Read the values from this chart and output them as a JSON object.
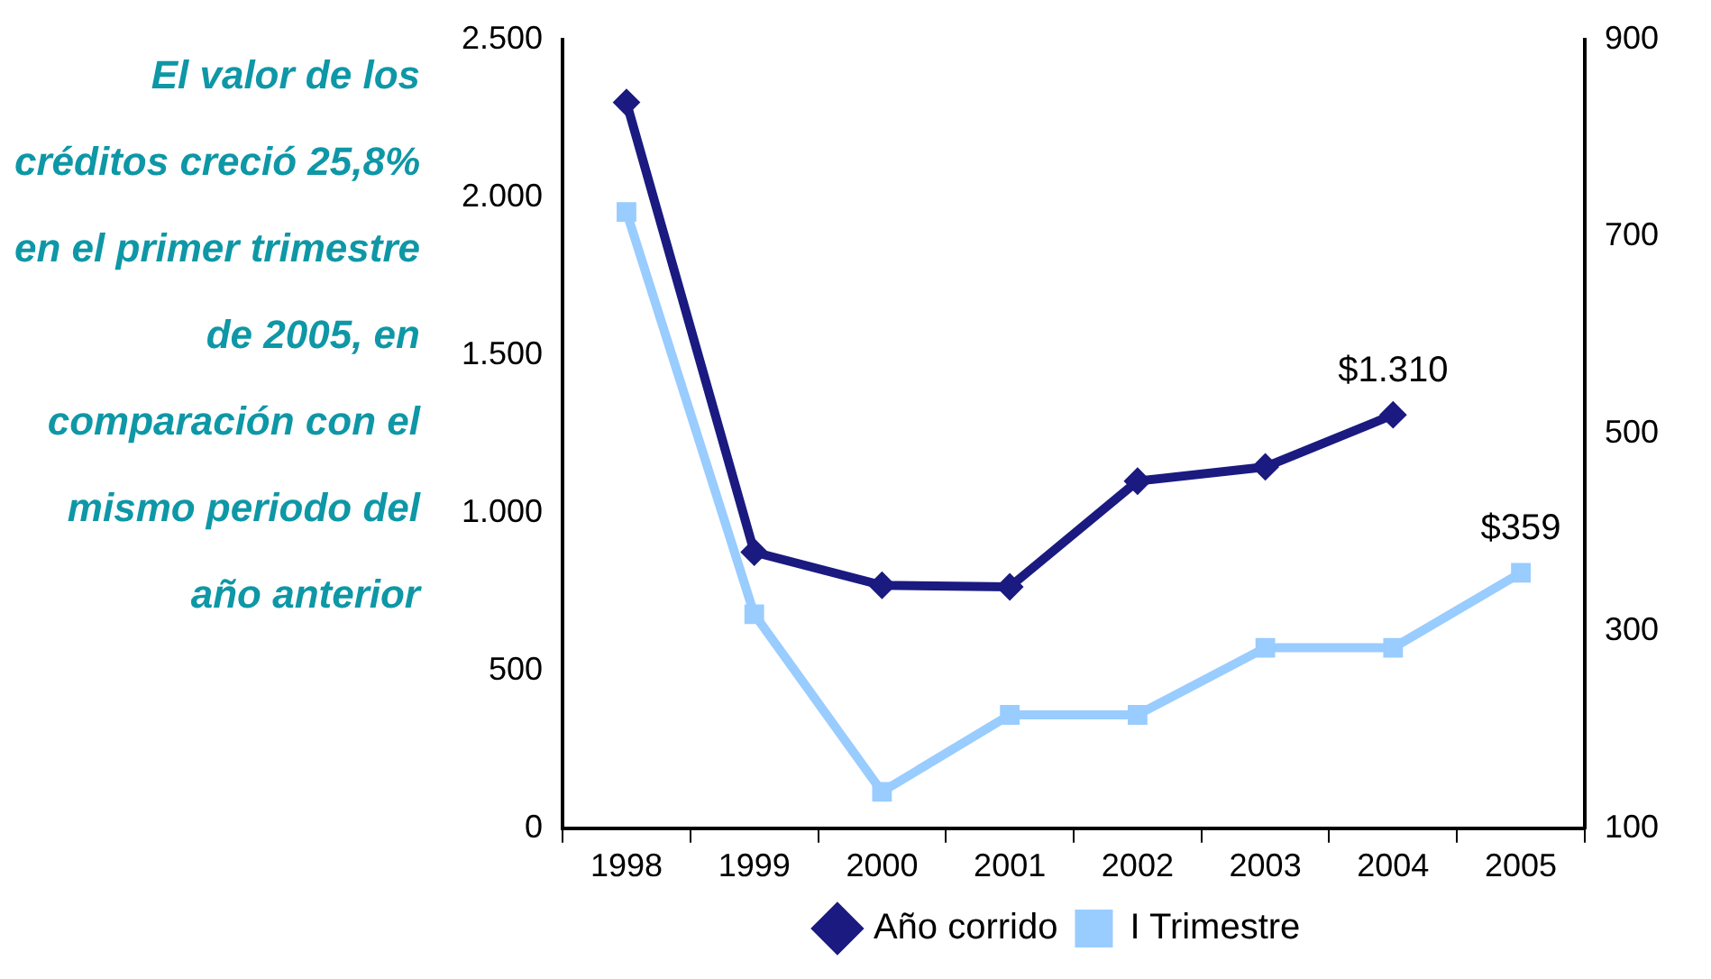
{
  "chart_data": {
    "type": "line",
    "categories": [
      "1998",
      "1999",
      "2000",
      "2001",
      "2002",
      "2003",
      "2004",
      "2005"
    ],
    "series": [
      {
        "name": "Año corrido",
        "color": "#1a1a80",
        "marker": "diamond",
        "values": [
          2300,
          875,
          770,
          765,
          1100,
          1145,
          1310,
          null
        ],
        "value_labels": [
          null,
          null,
          null,
          null,
          null,
          null,
          "$1.310",
          null
        ]
      },
      {
        "name": "I Trimestre",
        "color": "#99ccff",
        "marker": "square",
        "axis": "y2",
        "values": [
          725,
          317,
          137,
          215,
          215,
          283,
          283,
          359
        ],
        "value_labels": [
          null,
          null,
          null,
          null,
          null,
          null,
          null,
          "$359"
        ]
      }
    ],
    "ylim": [
      0,
      2500
    ],
    "yticks": [
      0,
      {
        "value": 500,
        "label": "500"
      },
      {
        "value": 1000,
        "label": "1.000"
      },
      {
        "value": 1500,
        "label": "1.500"
      },
      {
        "value": 2000,
        "label": "2.000"
      },
      {
        "value": 2500,
        "label": "2.500"
      }
    ],
    "y2lim": [
      100,
      900
    ],
    "y2ticks": [
      100,
      300,
      500,
      700,
      900
    ],
    "grid": false,
    "legend": "bottom",
    "annotations": [
      "El valor de los créditos creció 25,8% en el primer trimestre de 2005, en comparación con el mismo periodo del año anterior"
    ]
  }
}
